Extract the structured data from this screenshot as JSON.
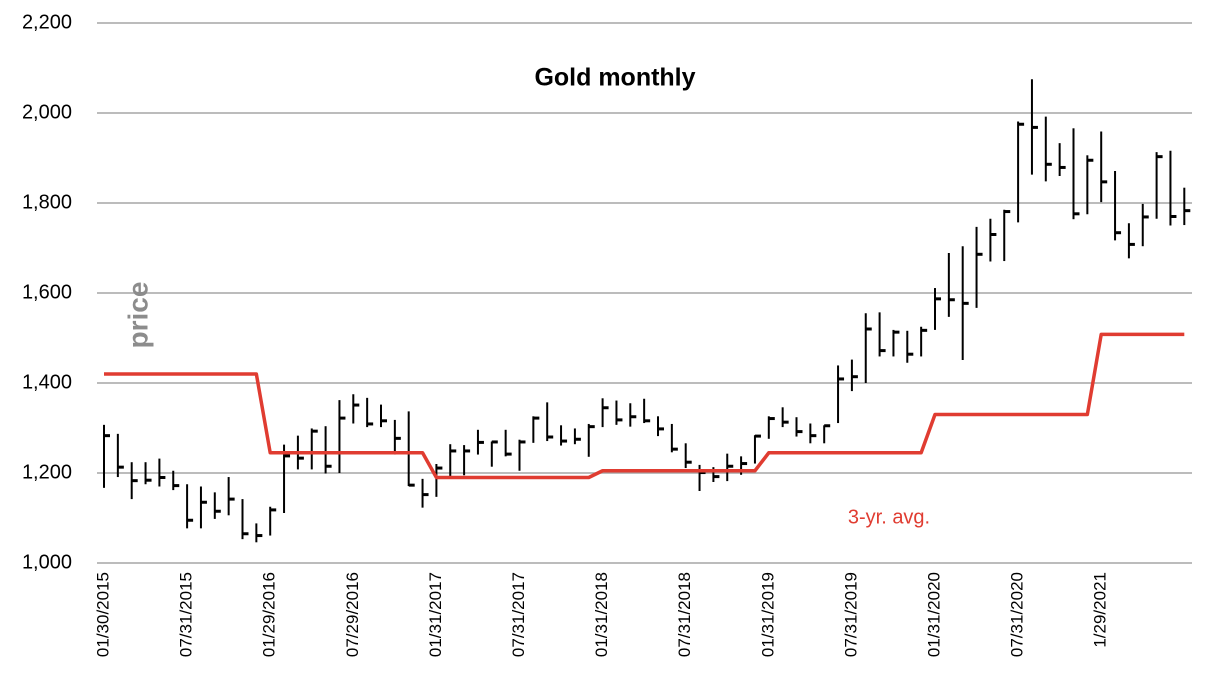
{
  "chart_data": {
    "type": "ohlc",
    "title": "Gold monthly",
    "annotation": "3-yr. avg.",
    "categories": [
      "01/30/2015",
      null,
      null,
      null,
      null,
      null,
      "07/31/2015",
      null,
      null,
      null,
      null,
      null,
      "01/29/2016",
      null,
      null,
      null,
      null,
      null,
      "07/29/2016",
      null,
      null,
      null,
      null,
      null,
      "01/31/2017",
      null,
      null,
      null,
      null,
      null,
      "07/31/2017",
      null,
      null,
      null,
      null,
      null,
      "01/31/2018",
      null,
      null,
      null,
      null,
      null,
      "07/31/2018",
      null,
      null,
      null,
      null,
      null,
      "01/31/2019",
      null,
      null,
      null,
      null,
      null,
      "07/31/2019",
      null,
      null,
      null,
      null,
      null,
      "01/31/2020",
      null,
      null,
      null,
      null,
      null,
      "07/31/2020",
      null,
      null,
      null,
      null,
      null,
      "1/29/2021",
      null,
      null,
      null,
      null,
      null,
      null
    ],
    "series": [
      {
        "name": "price",
        "color": "#000000",
        "high": [
          1307,
          1287,
          1224,
          1224,
          1232,
          1205,
          1175,
          1170,
          1157,
          1191,
          1142,
          1088,
          1125,
          1263,
          1283,
          1299,
          1304,
          1362,
          1375,
          1367,
          1352,
          1318,
          1337,
          1187,
          1220,
          1264,
          1262,
          1296,
          1270,
          1296,
          1274,
          1326,
          1357,
          1306,
          1299,
          1309,
          1366,
          1361,
          1355,
          1365,
          1326,
          1309,
          1266,
          1218,
          1213,
          1243,
          1237,
          1284,
          1326,
          1346,
          1324,
          1310,
          1306,
          1439,
          1452,
          1555,
          1557,
          1518,
          1516,
          1525,
          1611,
          1689,
          1704,
          1747,
          1765,
          1785,
          1981,
          2075,
          1992,
          1933,
          1966,
          1906,
          1959,
          1871,
          1755,
          1798,
          1913,
          1916,
          1834
        ],
        "low": [
          1167,
          1191,
          1142,
          1175,
          1170,
          1162,
          1077,
          1077,
          1098,
          1106,
          1053,
          1046,
          1061,
          1111,
          1208,
          1208,
          1199,
          1200,
          1310,
          1302,
          1302,
          1241,
          1171,
          1123,
          1147,
          1191,
          1195,
          1241,
          1214,
          1237,
          1205,
          1267,
          1271,
          1261,
          1264,
          1236,
          1302,
          1307,
          1303,
          1311,
          1282,
          1246,
          1211,
          1160,
          1180,
          1182,
          1196,
          1221,
          1276,
          1302,
          1281,
          1266,
          1266,
          1311,
          1382,
          1400,
          1459,
          1459,
          1445,
          1459,
          1518,
          1547,
          1451,
          1567,
          1670,
          1671,
          1757,
          1863,
          1848,
          1860,
          1764,
          1775,
          1802,
          1717,
          1677,
          1704,
          1765,
          1750,
          1751
        ],
        "close": [
          1283,
          1213,
          1183,
          1184,
          1190,
          1172,
          1095,
          1135,
          1115,
          1142,
          1065,
          1061,
          1118,
          1238,
          1233,
          1293,
          1215,
          1322,
          1351,
          1309,
          1316,
          1277,
          1173,
          1152,
          1211,
          1249,
          1249,
          1268,
          1269,
          1242,
          1269,
          1322,
          1280,
          1271,
          1275,
          1303,
          1345,
          1318,
          1325,
          1316,
          1298,
          1253,
          1224,
          1201,
          1192,
          1215,
          1221,
          1282,
          1321,
          1313,
          1292,
          1283,
          1305,
          1409,
          1414,
          1520,
          1472,
          1513,
          1464,
          1517,
          1587,
          1585,
          1577,
          1686,
          1730,
          1781,
          1975,
          1968,
          1886,
          1879,
          1776,
          1895,
          1847,
          1734,
          1708,
          1769,
          1903,
          1770,
          1783
        ]
      },
      {
        "name": "3-yr. avg.",
        "color": "#e03c31",
        "values": [
          1420,
          1420,
          1420,
          1420,
          1420,
          1420,
          1420,
          1420,
          1420,
          1420,
          1420,
          1420,
          1245,
          1245,
          1245,
          1245,
          1245,
          1245,
          1245,
          1245,
          1245,
          1245,
          1245,
          1245,
          1190,
          1190,
          1190,
          1190,
          1190,
          1190,
          1190,
          1190,
          1190,
          1190,
          1190,
          1190,
          1205,
          1205,
          1205,
          1205,
          1205,
          1205,
          1205,
          1205,
          1205,
          1205,
          1205,
          1205,
          1245,
          1245,
          1245,
          1245,
          1245,
          1245,
          1245,
          1245,
          1245,
          1245,
          1245,
          1245,
          1330,
          1330,
          1330,
          1330,
          1330,
          1330,
          1330,
          1330,
          1330,
          1330,
          1330,
          1330,
          1508,
          1508,
          1508,
          1508,
          1508,
          1508,
          1508
        ]
      }
    ],
    "ylim": [
      1000,
      2200
    ],
    "yticks": [
      {
        "value": 1000,
        "label": "1,000"
      },
      {
        "value": 1200,
        "label": "1,200"
      },
      {
        "value": 1400,
        "label": "1,400"
      },
      {
        "value": 1600,
        "label": "1,600"
      },
      {
        "value": 1800,
        "label": "1,800"
      },
      {
        "value": 2000,
        "label": "2,000"
      },
      {
        "value": 2200,
        "label": "2,200"
      }
    ],
    "grid": true
  }
}
